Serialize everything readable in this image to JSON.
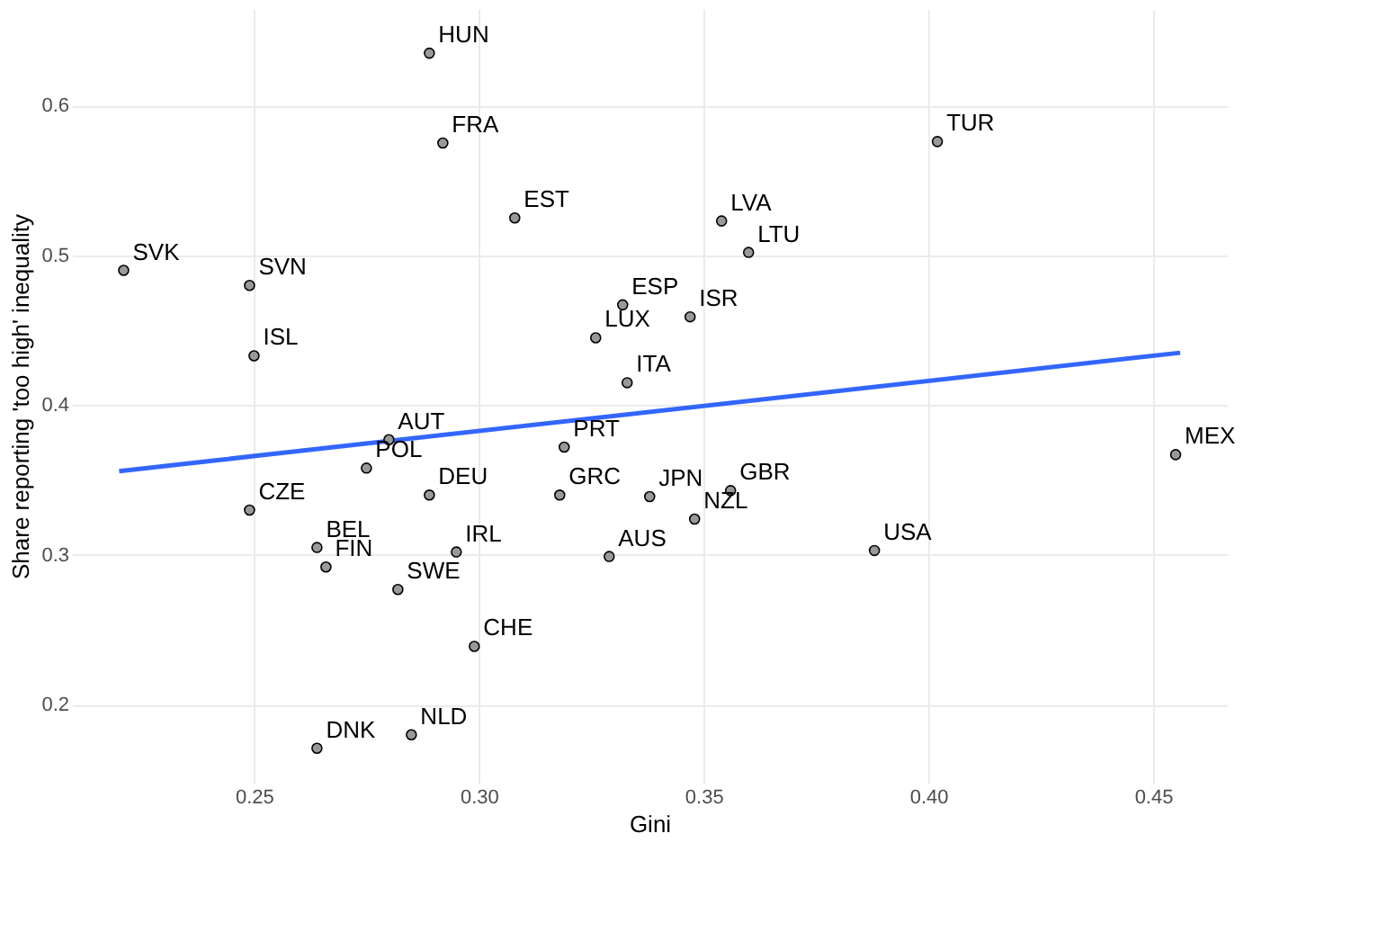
{
  "chart_data": {
    "type": "scatter",
    "xlabel": "Gini",
    "ylabel": "Share reporting 'too high' inequality",
    "xlim": [
      0.2095,
      0.4664
    ],
    "ylim": [
      0.148,
      0.6645
    ],
    "xticks": [
      0.25,
      {
        "value": 0.3,
        "label": "0.30"
      },
      0.35,
      {
        "value": 0.4,
        "label": "0.40"
      },
      0.45
    ],
    "yticks": [
      {
        "value": 0.2,
        "label": "0.2"
      },
      {
        "value": 0.3,
        "label": "0.3"
      },
      {
        "value": 0.4,
        "label": "0.4"
      },
      {
        "value": 0.5,
        "label": "0.5"
      },
      {
        "value": 0.6,
        "label": "0.6"
      }
    ],
    "grid": true,
    "series": [
      {
        "color": "#999999",
        "marker": "circle",
        "x": [
          0.289,
          0.292,
          0.402,
          0.308,
          0.354,
          0.36,
          0.221,
          0.249,
          0.332,
          0.347,
          0.326,
          0.25,
          0.333,
          0.28,
          0.319,
          0.275,
          0.455,
          0.356,
          0.338,
          0.289,
          0.318,
          0.249,
          0.348,
          0.264,
          0.266,
          0.295,
          0.329,
          0.388,
          0.282,
          0.299,
          0.285,
          0.264
        ],
        "values": [
          0.635,
          0.575,
          0.576,
          0.525,
          0.523,
          0.502,
          0.49,
          0.48,
          0.467,
          0.459,
          0.445,
          0.433,
          0.415,
          0.377,
          0.372,
          0.358,
          0.367,
          0.343,
          0.339,
          0.34,
          0.34,
          0.33,
          0.324,
          0.305,
          0.292,
          0.302,
          0.299,
          0.303,
          0.277,
          0.239,
          0.18,
          0.171
        ]
      },
      {
        "type": "line",
        "marker": "none",
        "color": "#3366ff",
        "x": [
          0.22,
          0.456
        ],
        "values": [
          0.356,
          0.435
        ]
      }
    ],
    "annotations": [
      {
        "text": "HUN",
        "x": 0.289,
        "y": 0.635
      },
      {
        "text": "FRA",
        "x": 0.292,
        "y": 0.575
      },
      {
        "text": "TUR",
        "x": 0.402,
        "y": 0.576
      },
      {
        "text": "EST",
        "x": 0.308,
        "y": 0.525
      },
      {
        "text": "LVA",
        "x": 0.354,
        "y": 0.523
      },
      {
        "text": "LTU",
        "x": 0.36,
        "y": 0.502
      },
      {
        "text": "SVK",
        "x": 0.221,
        "y": 0.49
      },
      {
        "text": "SVN",
        "x": 0.249,
        "y": 0.48
      },
      {
        "text": "ESP",
        "x": 0.332,
        "y": 0.467
      },
      {
        "text": "ISR",
        "x": 0.347,
        "y": 0.459
      },
      {
        "text": "LUX",
        "x": 0.326,
        "y": 0.445
      },
      {
        "text": "ISL",
        "x": 0.25,
        "y": 0.433
      },
      {
        "text": "ITA",
        "x": 0.333,
        "y": 0.415
      },
      {
        "text": "AUT",
        "x": 0.28,
        "y": 0.377
      },
      {
        "text": "PRT",
        "x": 0.319,
        "y": 0.372
      },
      {
        "text": "POL",
        "x": 0.275,
        "y": 0.358
      },
      {
        "text": "MEX",
        "x": 0.455,
        "y": 0.367
      },
      {
        "text": "GBR",
        "x": 0.356,
        "y": 0.343
      },
      {
        "text": "JPN",
        "x": 0.338,
        "y": 0.339
      },
      {
        "text": "DEU",
        "x": 0.289,
        "y": 0.34
      },
      {
        "text": "GRC",
        "x": 0.318,
        "y": 0.34
      },
      {
        "text": "CZE",
        "x": 0.249,
        "y": 0.33
      },
      {
        "text": "NZL",
        "x": 0.348,
        "y": 0.324
      },
      {
        "text": "BEL",
        "x": 0.264,
        "y": 0.305
      },
      {
        "text": "FIN",
        "x": 0.266,
        "y": 0.292
      },
      {
        "text": "IRL",
        "x": 0.295,
        "y": 0.302
      },
      {
        "text": "AUS",
        "x": 0.329,
        "y": 0.299
      },
      {
        "text": "USA",
        "x": 0.388,
        "y": 0.303
      },
      {
        "text": "SWE",
        "x": 0.282,
        "y": 0.277
      },
      {
        "text": "CHE",
        "x": 0.299,
        "y": 0.239
      },
      {
        "text": "NLD",
        "x": 0.285,
        "y": 0.18
      },
      {
        "text": "DNK",
        "x": 0.264,
        "y": 0.171
      }
    ]
  }
}
